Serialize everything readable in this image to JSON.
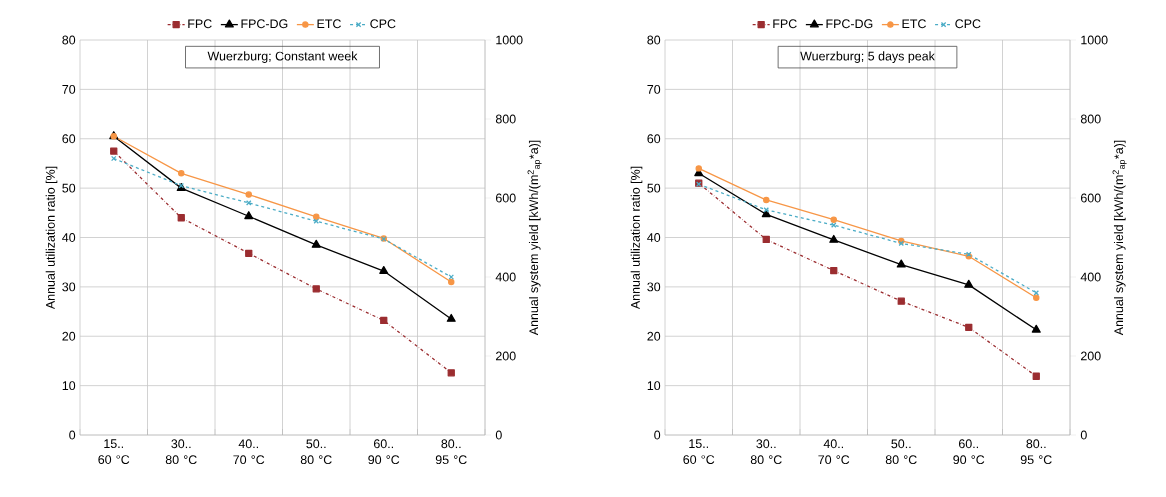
{
  "chart_data": [
    {
      "type": "line",
      "title": "Wuerzburg; Constant week",
      "ylabel": "Annual utilization ratio [%]",
      "y2label": "Annual system yield [kWh/(m$^{2}$$_{ap}$*a)]",
      "categories": [
        "15.. 60 °C",
        "30.. 80 °C",
        "40.. 70 °C",
        "50.. 80 °C",
        "60.. 90 °C",
        "80.. 95 °C"
      ],
      "series": [
        {
          "name": "FPC",
          "color": "#9b2d30",
          "marker": "square",
          "line_style": "dashdot",
          "values": [
            57.5,
            44,
            36.8,
            29.6,
            23.2,
            12.6
          ]
        },
        {
          "name": "FPC-DG",
          "color": "#000000",
          "marker": "triangle",
          "line_style": "solid",
          "values": [
            60.5,
            50,
            44.3,
            38.5,
            33.2,
            23.5
          ]
        },
        {
          "name": "ETC",
          "color": "#f79646",
          "marker": "circle",
          "line_style": "solid",
          "values": [
            60.5,
            53,
            48.7,
            44.2,
            39.8,
            31
          ]
        },
        {
          "name": "CPC",
          "color": "#4bacc6",
          "marker": "cross",
          "line_style": "dashed",
          "values": [
            56,
            50.5,
            47,
            43.3,
            39.7,
            32
          ]
        }
      ],
      "ylim": [
        0,
        80
      ],
      "yticks": [
        0,
        10,
        20,
        30,
        40,
        50,
        60,
        70,
        80
      ],
      "y2lim": [
        0,
        1000
      ],
      "y2ticks": [
        0,
        200,
        400,
        600,
        800,
        1000
      ],
      "grid": true,
      "legend": "top"
    },
    {
      "type": "line",
      "title": "Wuerzburg; 5 days peak",
      "ylabel": "Annual utilization ratio [%]",
      "y2label": "Annual system yield [kWh/(m$^{2}$$_{ap}$*a)]",
      "categories": [
        "15.. 60 °C",
        "30.. 80 °C",
        "40.. 70 °C",
        "50.. 80 °C",
        "60.. 90 °C",
        "80.. 95 °C"
      ],
      "series": [
        {
          "name": "FPC",
          "color": "#9b2d30",
          "marker": "square",
          "line_style": "dashdot",
          "values": [
            51,
            39.6,
            33.3,
            27.1,
            21.8,
            11.9
          ]
        },
        {
          "name": "FPC-DG",
          "color": "#000000",
          "marker": "triangle",
          "line_style": "solid",
          "values": [
            53,
            44.7,
            39.5,
            34.5,
            30.4,
            21.3
          ]
        },
        {
          "name": "ETC",
          "color": "#f79646",
          "marker": "circle",
          "line_style": "solid",
          "values": [
            54,
            47.6,
            43.6,
            39.3,
            36.2,
            27.8
          ]
        },
        {
          "name": "CPC",
          "color": "#4bacc6",
          "marker": "cross",
          "line_style": "dashed",
          "values": [
            50.8,
            45.6,
            42.5,
            38.8,
            36.6,
            28.8
          ]
        }
      ],
      "ylim": [
        0,
        80
      ],
      "yticks": [
        0,
        10,
        20,
        30,
        40,
        50,
        60,
        70,
        80
      ],
      "y2lim": [
        0,
        1000
      ],
      "y2ticks": [
        0,
        200,
        400,
        600,
        800,
        1000
      ],
      "grid": true,
      "legend": "top"
    }
  ]
}
